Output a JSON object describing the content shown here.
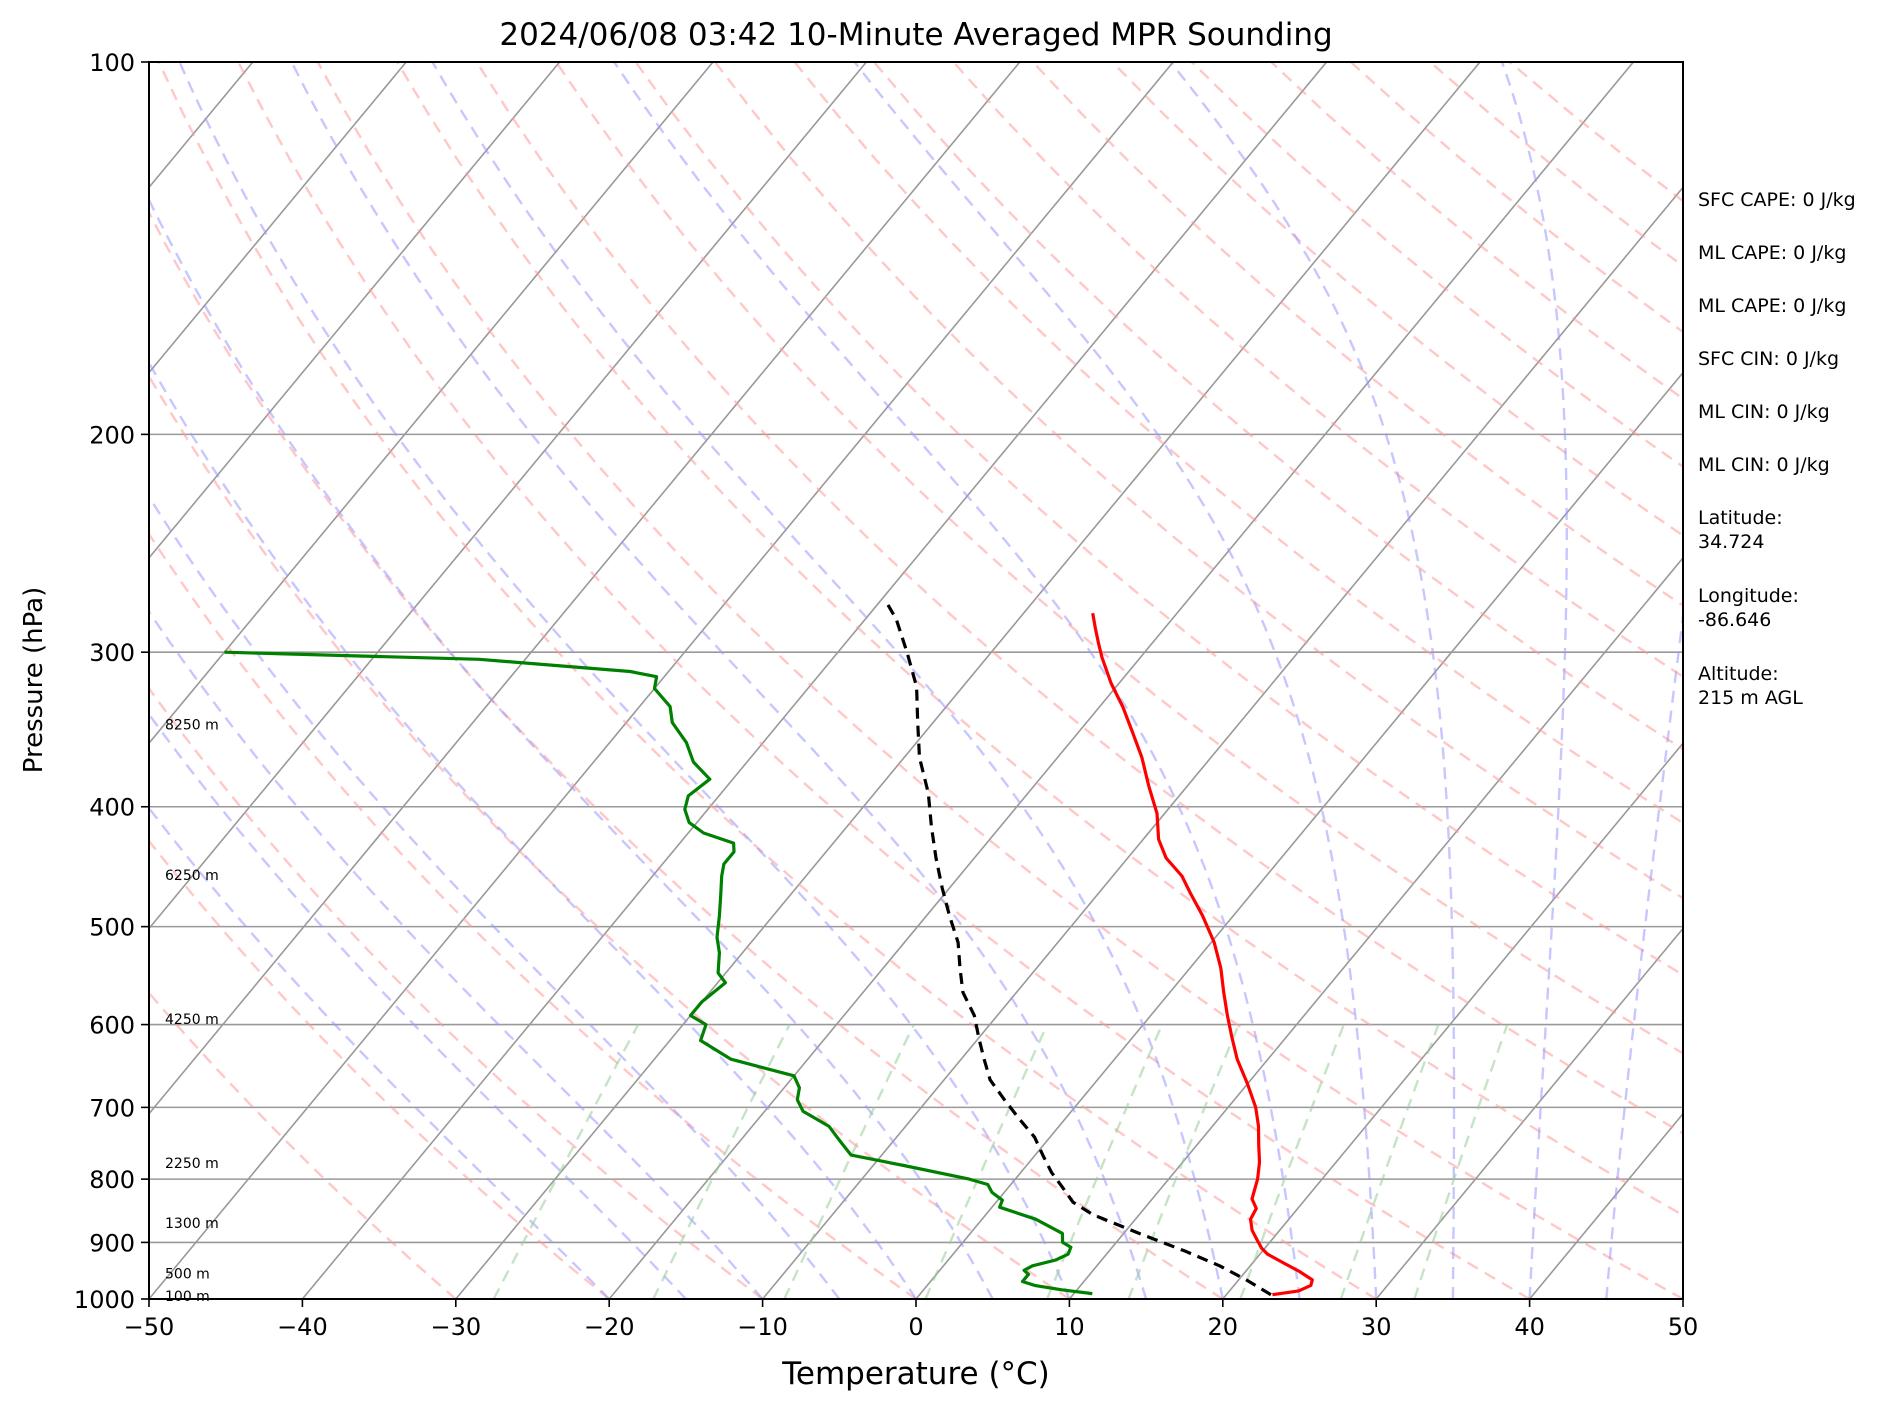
{
  "chart_data": {
    "type": "line",
    "title": "2024/06/08 03:42 10-Minute Averaged MPR Sounding",
    "xlabel": "Temperature (°C)",
    "ylabel": "Pressure (hPa)",
    "xlim": [
      -50,
      50
    ],
    "ylim": [
      1000,
      100
    ],
    "y_scale": "log",
    "skew": true,
    "grid": true,
    "x_ticks": [
      "−50",
      "−40",
      "−30",
      "−20",
      "−10",
      "0",
      "10",
      "20",
      "30",
      "40",
      "50"
    ],
    "x_tick_values": [
      -50,
      -40,
      -30,
      -20,
      -10,
      0,
      10,
      20,
      30,
      40,
      50
    ],
    "y_ticks": [
      "100",
      "200",
      "300",
      "400",
      "500",
      "600",
      "700",
      "800",
      "900",
      "1000"
    ],
    "y_tick_values": [
      100,
      200,
      300,
      400,
      500,
      600,
      700,
      800,
      900,
      1000
    ],
    "height_labels": [
      {
        "text": "8250 m",
        "p": 344
      },
      {
        "text": "6250 m",
        "p": 455
      },
      {
        "text": "4250 m",
        "p": 595
      },
      {
        "text": "2250 m",
        "p": 778
      },
      {
        "text": "1300 m",
        "p": 870
      },
      {
        "text": "500 m",
        "p": 955
      },
      {
        "text": "100 m",
        "p": 996
      }
    ],
    "series": [
      {
        "color": "#ff0000",
        "style": "solid",
        "points": [
          [
            23.0,
            992
          ],
          [
            24.5,
            985
          ],
          [
            25.0,
            975
          ],
          [
            24.8,
            965
          ],
          [
            23.5,
            950
          ],
          [
            22.0,
            935
          ],
          [
            20.5,
            920
          ],
          [
            19.8,
            910
          ],
          [
            19.0,
            895
          ],
          [
            18.2,
            880
          ],
          [
            17.5,
            862
          ],
          [
            17.3,
            845
          ],
          [
            16.5,
            830
          ],
          [
            15.8,
            800
          ],
          [
            15.0,
            775
          ],
          [
            14.0,
            750
          ],
          [
            13.0,
            725
          ],
          [
            11.8,
            700
          ],
          [
            10.0,
            670
          ],
          [
            8.0,
            640
          ],
          [
            6.5,
            615
          ],
          [
            5.0,
            590
          ],
          [
            3.5,
            565
          ],
          [
            2.0,
            540
          ],
          [
            0.2,
            515
          ],
          [
            -2.0,
            490
          ],
          [
            -4.0,
            470
          ],
          [
            -5.5,
            455
          ],
          [
            -7.5,
            440
          ],
          [
            -9.0,
            425
          ],
          [
            -10.5,
            405
          ],
          [
            -12.5,
            385
          ],
          [
            -14.5,
            365
          ],
          [
            -16.5,
            348
          ],
          [
            -18.5,
            332
          ],
          [
            -20.5,
            318
          ],
          [
            -22.5,
            303
          ],
          [
            -23.5,
            295
          ],
          [
            -24.5,
            287
          ],
          [
            -25.5,
            279
          ]
        ]
      },
      {
        "color": "#008000",
        "style": "solid",
        "points": [
          [
            11.2,
            990
          ],
          [
            9.0,
            983
          ],
          [
            7.0,
            975
          ],
          [
            6.0,
            968
          ],
          [
            6.0,
            955
          ],
          [
            5.5,
            948
          ],
          [
            5.8,
            940
          ],
          [
            7.0,
            930
          ],
          [
            7.5,
            920
          ],
          [
            7.3,
            908
          ],
          [
            6.5,
            900
          ],
          [
            6.0,
            885
          ],
          [
            3.5,
            862
          ],
          [
            0.5,
            843
          ],
          [
            0.3,
            832
          ],
          [
            -0.8,
            820
          ],
          [
            -1.5,
            808
          ],
          [
            -3.0,
            800
          ],
          [
            -8.0,
            780
          ],
          [
            -12.0,
            765
          ],
          [
            -13.5,
            745
          ],
          [
            -15.0,
            725
          ],
          [
            -17.5,
            705
          ],
          [
            -18.5,
            690
          ],
          [
            -19.0,
            675
          ],
          [
            -20.0,
            660
          ],
          [
            -22.5,
            650
          ],
          [
            -25.0,
            640
          ],
          [
            -28.0,
            618
          ],
          [
            -28.5,
            600
          ],
          [
            -30.0,
            590
          ],
          [
            -30.0,
            575
          ],
          [
            -29.5,
            555
          ],
          [
            -30.5,
            545
          ],
          [
            -31.5,
            525
          ],
          [
            -32.5,
            510
          ],
          [
            -33.5,
            490
          ],
          [
            -34.5,
            472
          ],
          [
            -35.5,
            455
          ],
          [
            -36.0,
            445
          ],
          [
            -36.0,
            435
          ],
          [
            -36.5,
            428
          ],
          [
            -39.0,
            420
          ],
          [
            -40.5,
            412
          ],
          [
            -41.5,
            402
          ],
          [
            -42.0,
            392
          ],
          [
            -41.5,
            380
          ],
          [
            -43.5,
            368
          ],
          [
            -45.0,
            355
          ],
          [
            -47.0,
            342
          ],
          [
            -48.0,
            332
          ],
          [
            -50.0,
            321
          ],
          [
            -50.5,
            314
          ],
          [
            -52.5,
            311
          ],
          [
            -63.0,
            304
          ],
          [
            -80.0,
            300
          ]
        ]
      },
      {
        "color": "#000000",
        "style": "dashed",
        "points": [
          [
            22.9,
            992
          ],
          [
            20.5,
            965
          ],
          [
            18.0,
            940
          ],
          [
            15.0,
            915
          ],
          [
            11.0,
            885
          ],
          [
            7.0,
            855
          ],
          [
            5.0,
            835
          ],
          [
            3.5,
            812
          ],
          [
            2.0,
            790
          ],
          [
            0.5,
            765
          ],
          [
            -1.0,
            740
          ],
          [
            -3.0,
            715
          ],
          [
            -5.0,
            690
          ],
          [
            -7.0,
            665
          ],
          [
            -8.5,
            640
          ],
          [
            -10.0,
            615
          ],
          [
            -11.5,
            590
          ],
          [
            -13.5,
            565
          ],
          [
            -15.0,
            540
          ],
          [
            -16.5,
            515
          ],
          [
            -18.5,
            490
          ],
          [
            -20.5,
            465
          ],
          [
            -22.5,
            440
          ],
          [
            -24.5,
            415
          ],
          [
            -26.5,
            390
          ],
          [
            -29.0,
            365
          ],
          [
            -31.0,
            342
          ],
          [
            -33.0,
            320
          ],
          [
            -35.5,
            300
          ],
          [
            -38.0,
            282
          ],
          [
            -39.6,
            273
          ]
        ]
      }
    ]
  },
  "side_panel": {
    "sfc_cape": "SFC CAPE: 0 J/kg",
    "ml_cape_1": "ML CAPE: 0 J/kg",
    "ml_cape_2": "ML CAPE: 0 J/kg",
    "sfc_cin": "SFC CIN: 0 J/kg",
    "ml_cin_1": "ML CIN: 0 J/kg",
    "ml_cin_2": "ML CIN: 0 J/kg",
    "latitude_label": "Latitude:",
    "latitude_value": "34.724",
    "longitude_label": "Longitude:",
    "longitude_value": "-86.646",
    "altitude_label": "Altitude:",
    "altitude_value": "215 m AGL"
  },
  "colors": {
    "temperature": "#ff0000",
    "dewpoint": "#008000",
    "parcel": "#000000",
    "dry_adiabats": "#ff9999",
    "moist_adiabats": "#9999ff",
    "mixing_ratio": "#99cc99",
    "isotherms": "#999999"
  }
}
